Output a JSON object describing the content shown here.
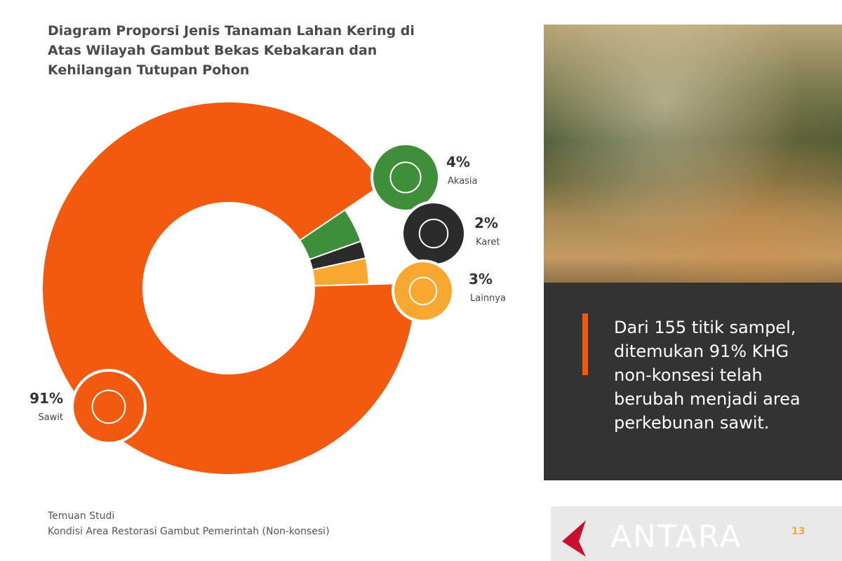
{
  "chart_data": {
    "type": "donut",
    "title": "Diagram Proporsi Jenis Tanaman Lahan Kering di Atas Wilayah Gambut Bekas Kebakaran dan Kehilangan Tutupan Pohon",
    "categories": [
      "Akasia",
      "Karet",
      "Lainnya",
      "Sawit"
    ],
    "values": [
      4,
      2,
      3,
      91
    ],
    "value_labels": [
      "4%",
      "2%",
      "3%",
      "91%"
    ],
    "colors": [
      "#3f8f3a",
      "#2b2b2b",
      "#f7a830",
      "#f15a0f"
    ]
  },
  "footer": {
    "title": "Temuan Studi",
    "subtitle": "Kondisi Area Restorasi Gambut Pemerintah (Non-konsesi)"
  },
  "callout": {
    "text": "Dari 155 titik sampel, ditemukan 91% KHG non-konsesi telah berubah menjadi area perkebunan sawit."
  },
  "page_number": "13",
  "watermark": "ANTARA"
}
